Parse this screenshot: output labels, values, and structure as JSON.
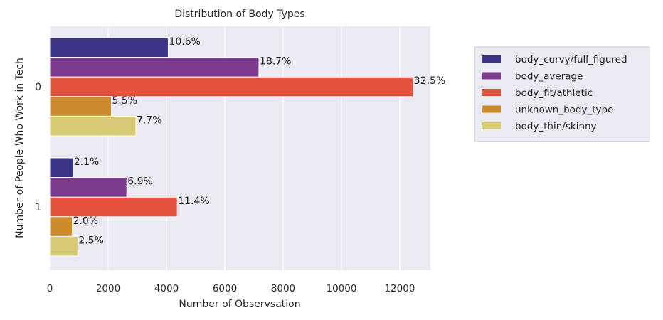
{
  "chart_data": {
    "type": "bar",
    "orientation": "horizontal",
    "title": "Distribution of Body Types",
    "xlabel": "Number of Observsation",
    "ylabel": "Number of People Who Work in Tech",
    "categories": [
      "0",
      "1"
    ],
    "xlim": [
      0,
      13050
    ],
    "xticks": [
      0,
      2000,
      4000,
      6000,
      8000,
      10000,
      12000
    ],
    "xtick_labels": [
      "0",
      "2000",
      "4000",
      "6000",
      "8000",
      "10000",
      "12000"
    ],
    "grid": true,
    "legend_position": "right",
    "series": [
      {
        "name": "body_curvy/full_figured",
        "color": "#3b3484",
        "values": [
          4060,
          800
        ],
        "labels": [
          "10.6%",
          "2.1%"
        ]
      },
      {
        "name": "body_average",
        "color": "#7c3a8c",
        "values": [
          7170,
          2640
        ],
        "labels": [
          "18.7%",
          "6.9%"
        ]
      },
      {
        "name": "body_fit/athletic",
        "color": "#e4533f",
        "values": [
          12460,
          4370
        ],
        "labels": [
          "32.5%",
          "11.4%"
        ]
      },
      {
        "name": "unknown_body_type",
        "color": "#cc8c2e",
        "values": [
          2110,
          770
        ],
        "labels": [
          "5.5%",
          "2.0%"
        ]
      },
      {
        "name": "body_thin/skinny",
        "color": "#d6c874",
        "values": [
          2950,
          960
        ],
        "labels": [
          "7.7%",
          "2.5%"
        ]
      }
    ]
  }
}
